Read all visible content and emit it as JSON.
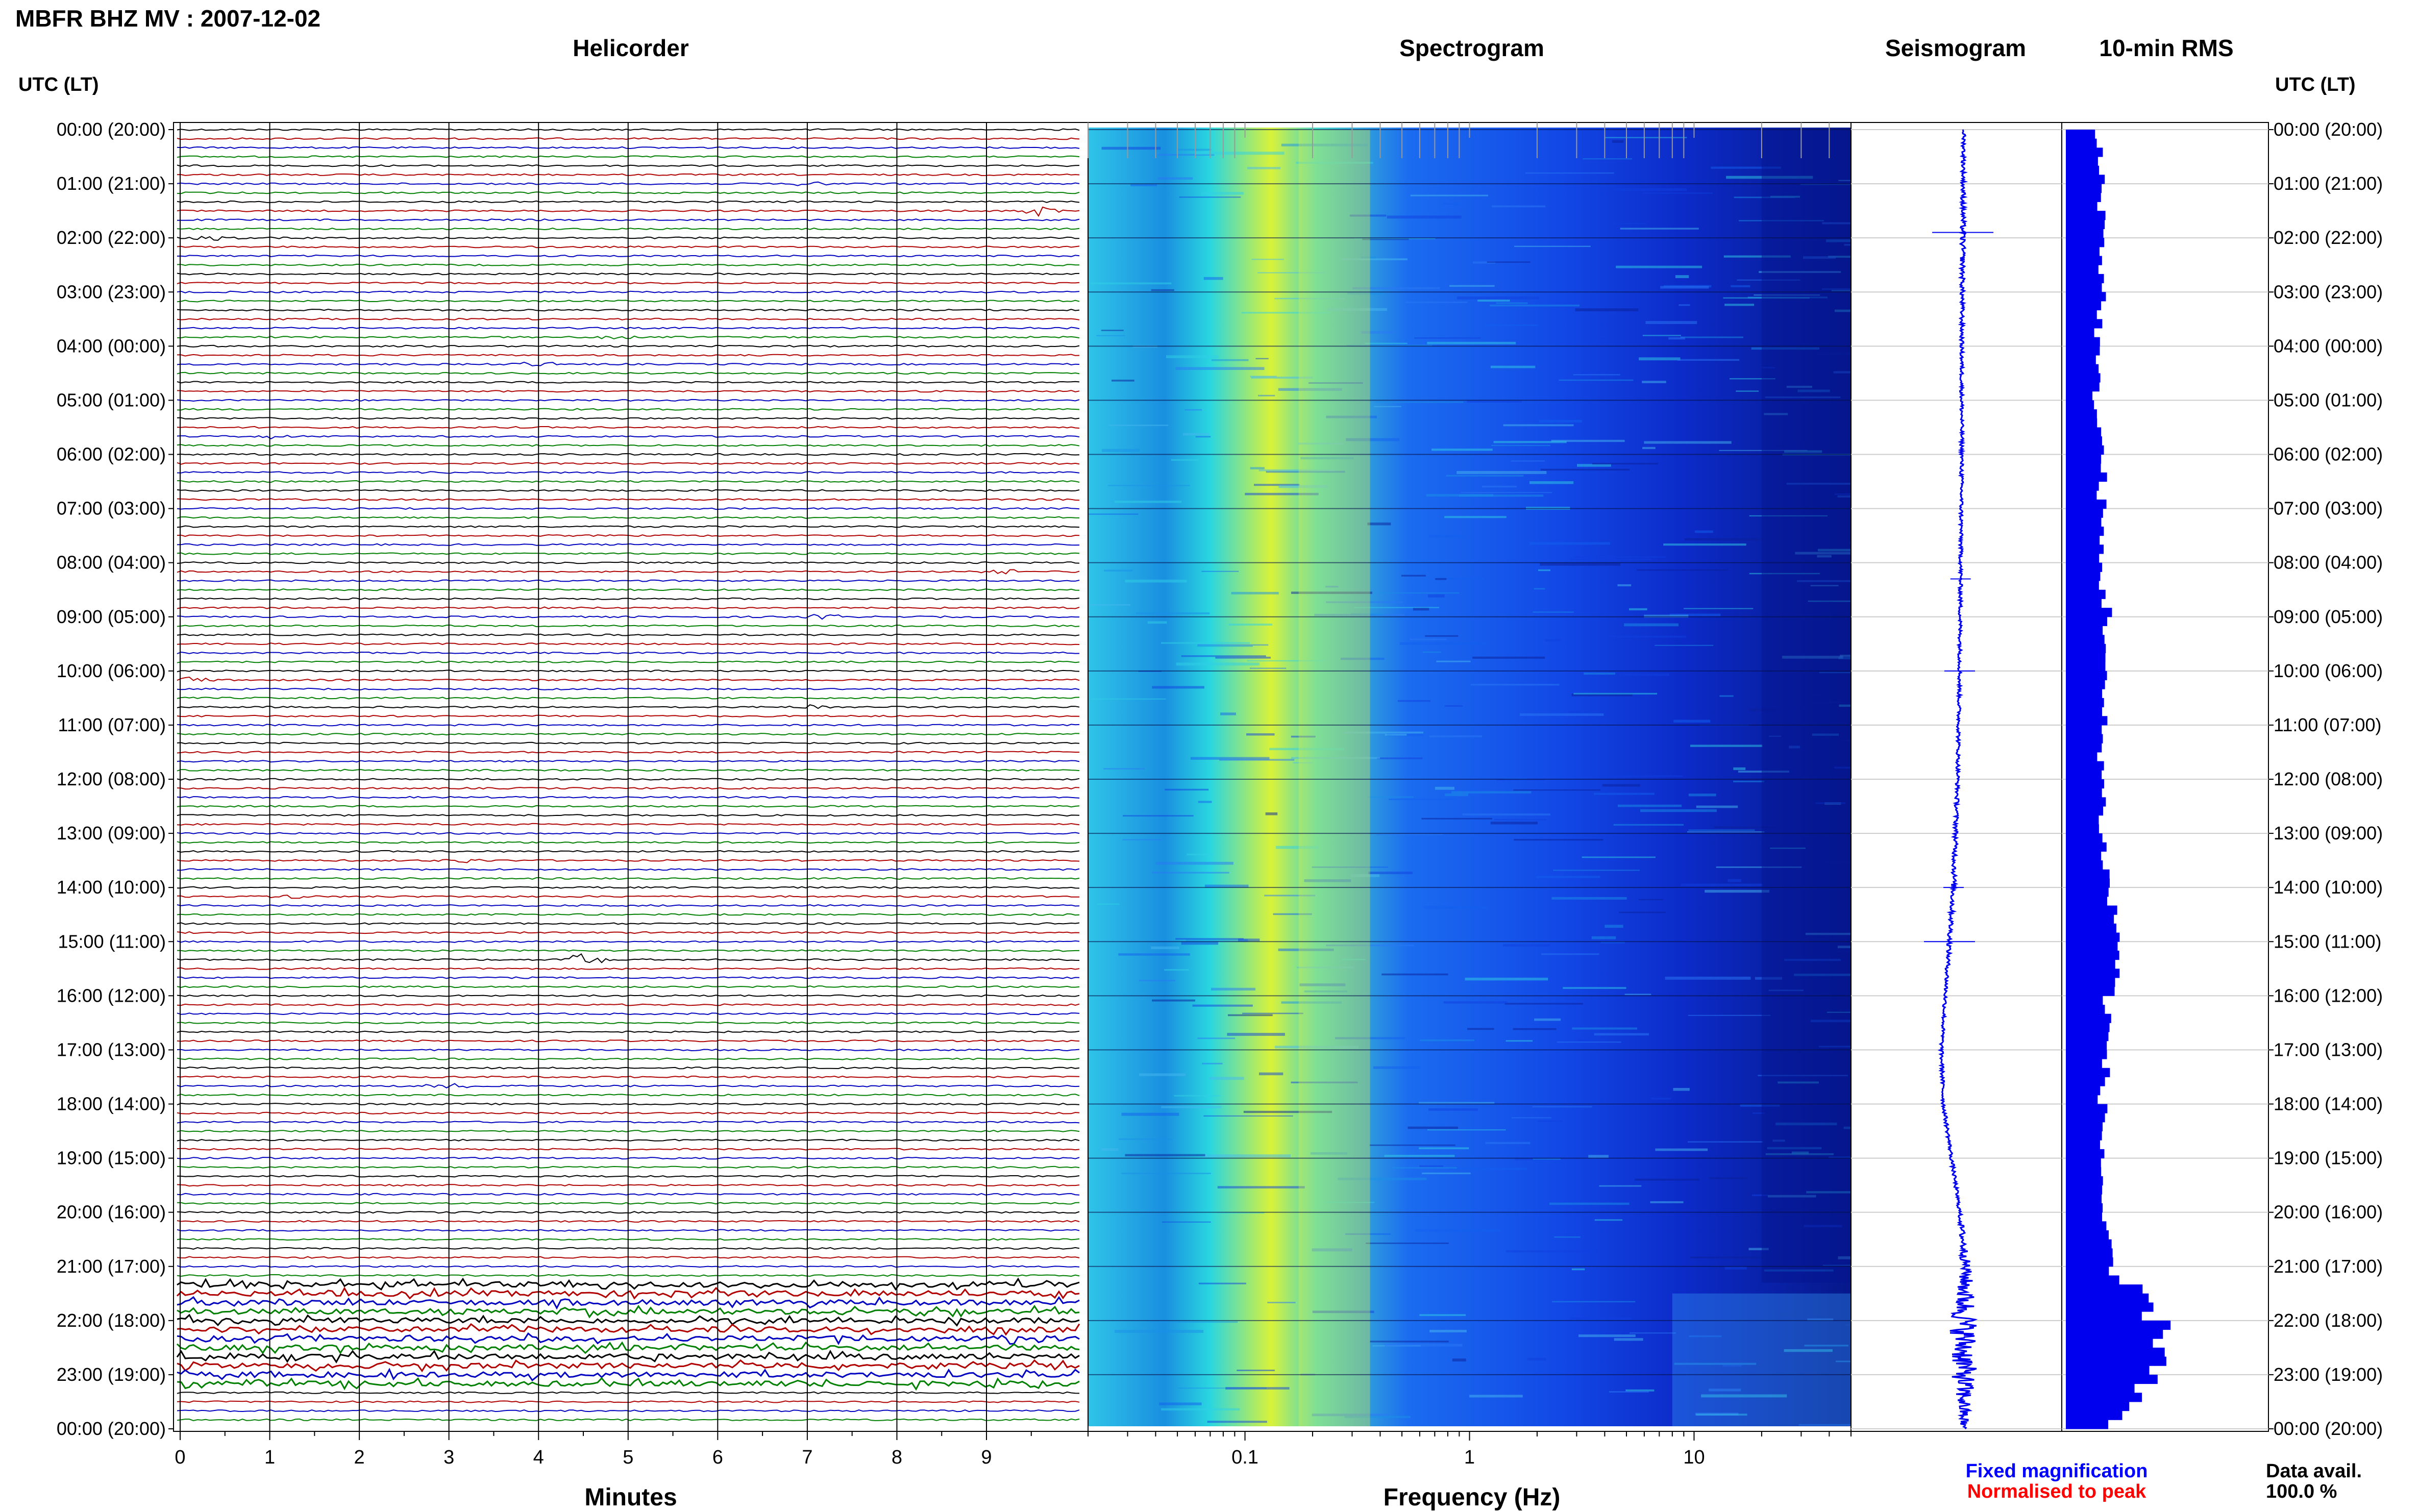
{
  "title": "MBFR BHZ MV : 2007-12-02",
  "panels": {
    "helicorder": "Helicorder",
    "spectrogram": "Spectrogram",
    "seismogram": "Seismogram",
    "rms": "10-min RMS"
  },
  "time_axis_label": "UTC (LT)",
  "time_labels": [
    "00:00 (20:00)",
    "01:00 (21:00)",
    "02:00 (22:00)",
    "03:00 (23:00)",
    "04:00 (00:00)",
    "05:00 (01:00)",
    "06:00 (02:00)",
    "07:00 (03:00)",
    "08:00 (04:00)",
    "09:00 (05:00)",
    "10:00 (06:00)",
    "11:00 (07:00)",
    "12:00 (08:00)",
    "13:00 (09:00)",
    "14:00 (10:00)",
    "15:00 (11:00)",
    "16:00 (12:00)",
    "17:00 (13:00)",
    "18:00 (14:00)",
    "19:00 (15:00)",
    "20:00 (16:00)",
    "21:00 (17:00)",
    "22:00 (18:00)",
    "23:00 (19:00)",
    "00:00 (20:00)"
  ],
  "helicorder_xlabel": "Minutes",
  "helicorder_ticks": [
    "0",
    "1",
    "2",
    "3",
    "4",
    "5",
    "6",
    "7",
    "8",
    "9"
  ],
  "spectrogram_xlabel": "Frequency (Hz)",
  "spectrogram_ticks": [
    "0.1",
    "1",
    "10"
  ],
  "legend": {
    "fixed": "Fixed magnification",
    "normalised": "Normalised to peak",
    "fixed_color": "#0000ff",
    "normalised_color": "#ff0000"
  },
  "data_avail": {
    "label": "Data avail.",
    "value": "100.0 %"
  },
  "colors": {
    "trace_cycle": [
      "#000000",
      "#b00000",
      "#0000c0",
      "#008000"
    ],
    "rms_bar": "#0000ee",
    "seismogram": "#0000ee"
  },
  "chart_data": [
    {
      "type": "line",
      "name": "helicorder",
      "title": "Helicorder",
      "xlabel": "Minutes",
      "xlim": [
        0,
        10
      ],
      "rows_per_hour": 6,
      "rows_per_day": 144,
      "event_rows": [
        {
          "row": 6,
          "minute": 7.0,
          "amp": 2.0
        },
        {
          "row": 9,
          "minute": 9.6,
          "amp": 4.5
        },
        {
          "row": 12,
          "minute": 0.4,
          "amp": 1.5
        },
        {
          "row": 23,
          "minute": 4.8,
          "amp": 1.5
        },
        {
          "row": 26,
          "minute": 4.0,
          "amp": 2.0
        },
        {
          "row": 34,
          "minute": 1.0,
          "amp": 1.5
        },
        {
          "row": 49,
          "minute": 9.2,
          "amp": 3.0
        },
        {
          "row": 54,
          "minute": 7.2,
          "amp": 2.0
        },
        {
          "row": 61,
          "minute": 0.1,
          "amp": 2.5
        },
        {
          "row": 64,
          "minute": 7.0,
          "amp": 1.5
        },
        {
          "row": 81,
          "minute": 3.2,
          "amp": 2.0
        },
        {
          "row": 85,
          "minute": 1.2,
          "amp": 1.5
        },
        {
          "row": 92,
          "minute": 4.5,
          "amp": 5.0
        },
        {
          "row": 106,
          "minute": 3.0,
          "amp": 2.0
        }
      ],
      "noisy_from_row": 128
    },
    {
      "type": "heatmap",
      "name": "spectrogram",
      "title": "Spectrogram",
      "xlabel": "Frequency (Hz)",
      "xscale": "log",
      "xlim": [
        0.02,
        50
      ],
      "ticks": [
        0.1,
        1,
        10
      ],
      "peak_frequency_hz": 0.25
    },
    {
      "type": "line",
      "name": "seismogram",
      "title": "Seismogram",
      "hours": [
        0,
        2,
        4,
        6,
        8,
        10,
        12,
        14,
        16,
        17,
        18,
        19,
        20,
        21,
        22,
        23,
        24
      ],
      "offset": [
        0,
        -0.05,
        -0.1,
        -0.1,
        -0.15,
        -0.2,
        -0.3,
        -0.5,
        -0.9,
        -1.1,
        -1.0,
        -0.6,
        -0.2,
        0.1,
        0.0,
        0.0,
        0.0
      ],
      "spread": [
        0.1,
        0.15,
        0.1,
        0.1,
        0.1,
        0.1,
        0.1,
        0.15,
        0.1,
        0.1,
        0.1,
        0.1,
        0.1,
        0.3,
        0.8,
        0.7,
        0.2
      ]
    },
    {
      "type": "bar",
      "name": "rms",
      "title": "10-min RMS",
      "orientation": "horizontal",
      "hours": [
        0,
        1,
        2,
        3,
        4,
        5,
        6,
        8,
        9,
        10,
        12,
        13,
        14,
        15,
        16,
        18,
        20,
        21,
        21.5,
        22,
        22.5,
        23,
        23.5,
        24
      ],
      "values": [
        0.25,
        0.3,
        0.3,
        0.3,
        0.25,
        0.25,
        0.3,
        0.28,
        0.35,
        0.3,
        0.3,
        0.3,
        0.35,
        0.45,
        0.35,
        0.3,
        0.3,
        0.35,
        0.65,
        0.75,
        0.85,
        0.7,
        0.5,
        0.3
      ],
      "xlim": [
        0,
        1
      ]
    }
  ]
}
